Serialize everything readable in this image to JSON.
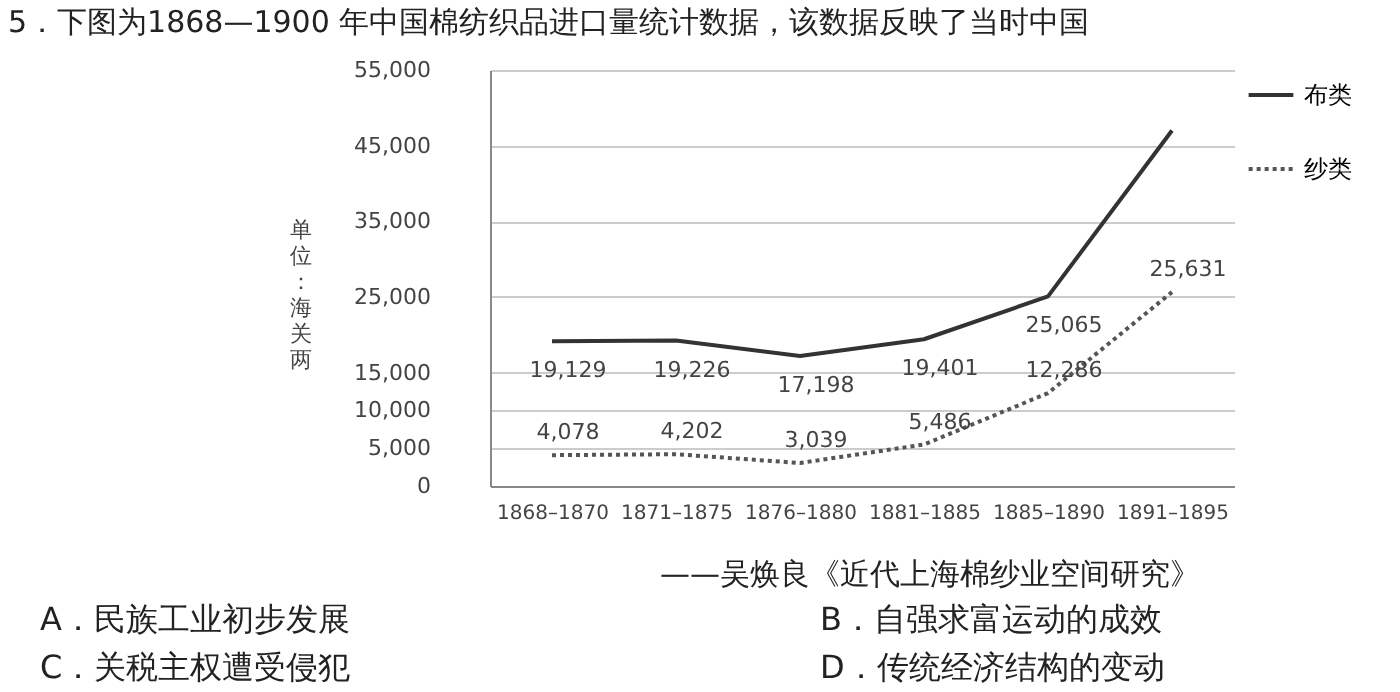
{
  "chart_data": {
    "type": "line",
    "title": "5．下图为1868—1900 年中国棉纺织品进口量统计数据，该数据反映了当时中国",
    "ylabel": "单位：海关两",
    "categories": [
      "1868–1870",
      "1871–1875",
      "1876–1880",
      "1881–1885",
      "1885–1890",
      "1891–1895"
    ],
    "series": [
      {
        "name": "布类",
        "color": "#333333",
        "line_style": "solid",
        "values": [
          19129,
          19226,
          17198,
          19401,
          25065,
          47000
        ],
        "value_labels": [
          "19,129",
          "19,226",
          "17,198",
          "19,401",
          "25,065",
          null
        ]
      },
      {
        "name": "纱类",
        "color": "#555555",
        "line_style": "dotted",
        "values": [
          4078,
          4202,
          3039,
          5486,
          12286,
          25631
        ],
        "value_labels": [
          "4,078",
          "4,202",
          "3,039",
          "5,486",
          "12,286",
          "25,631"
        ]
      }
    ],
    "ylim": [
      0,
      55000
    ],
    "yticks": [
      0,
      {
        "value": 5000,
        "label": "5,000"
      },
      {
        "value": 10000,
        "label": "10,000"
      },
      {
        "value": 15000,
        "label": "15,000"
      },
      {
        "value": 25000,
        "label": "25,000"
      },
      {
        "value": 35000,
        "label": "35,000"
      },
      {
        "value": 45000,
        "label": "45,000"
      },
      {
        "value": 55000,
        "label": "55,000"
      }
    ],
    "grid": "y",
    "legend": "right",
    "marker": "none",
    "annotations": [
      "——吴焕良《近代上海棉纱业空间研究》",
      "A．民族工业初步发展",
      "B．自强求富运动的成效",
      "C．关税主权遭受侵犯",
      "D．传统经济结构的变动"
    ]
  }
}
